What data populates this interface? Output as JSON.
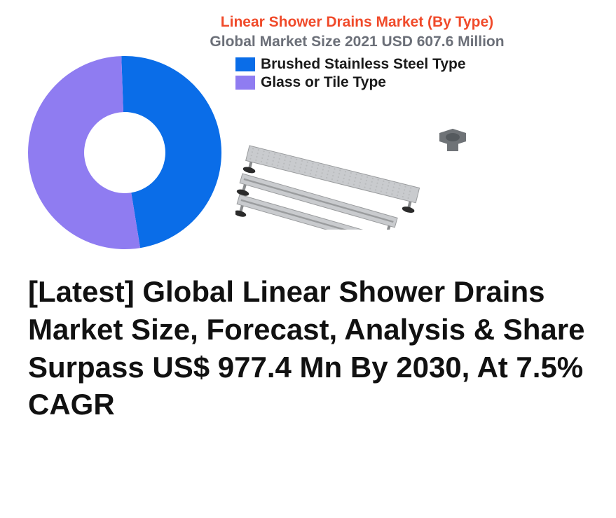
{
  "chart": {
    "title": "Linear Shower Drains Market (By Type)",
    "title_color": "#f04a2a",
    "title_fontsize": 21,
    "title_fontweight": 700,
    "subtitle": "Global Market Size 2021 USD 607.6 Million",
    "subtitle_color": "#6b6f78",
    "subtitle_fontsize": 21,
    "subtitle_fontweight": 700,
    "type": "donut",
    "donut": {
      "size": 276,
      "inner_ratio": 0.42,
      "background_color": "#ffffff",
      "slices": [
        {
          "label": "Brushed Stainless Steel Type",
          "fraction": 0.48,
          "color": "#0a6de8"
        },
        {
          "label": "Glass or Tile Type",
          "fraction": 0.52,
          "color": "#8f7cf1"
        }
      ],
      "start_angle_deg": -92
    },
    "legend": {
      "swatch_w": 28,
      "swatch_h": 20,
      "label_fontsize": 21,
      "label_color": "#1a1a1a",
      "items": [
        {
          "color": "#0a6de8",
          "label": "Brushed Stainless Steel Type"
        },
        {
          "color": "#8f7cf1",
          "label": "Glass or Tile Type"
        }
      ]
    }
  },
  "product_illustration": {
    "drain_body_color": "#c9cbce",
    "drain_grate_color": "#b9bbbd",
    "drain_edge_color": "#9a9c9e",
    "foot_cap_color": "#2b2b2b",
    "foot_stem_color": "#8a8c8e",
    "fitting_color": "#6f7377"
  },
  "headline": {
    "text": "[Latest] Global Linear Shower Drains Market Size, Forecast, Analysis & Share Surpass US$ 977.4 Mn By 2030, At 7.5% CAGR",
    "color": "#111111",
    "fontsize": 42,
    "fontweight": 900,
    "line_height": 1.28
  }
}
